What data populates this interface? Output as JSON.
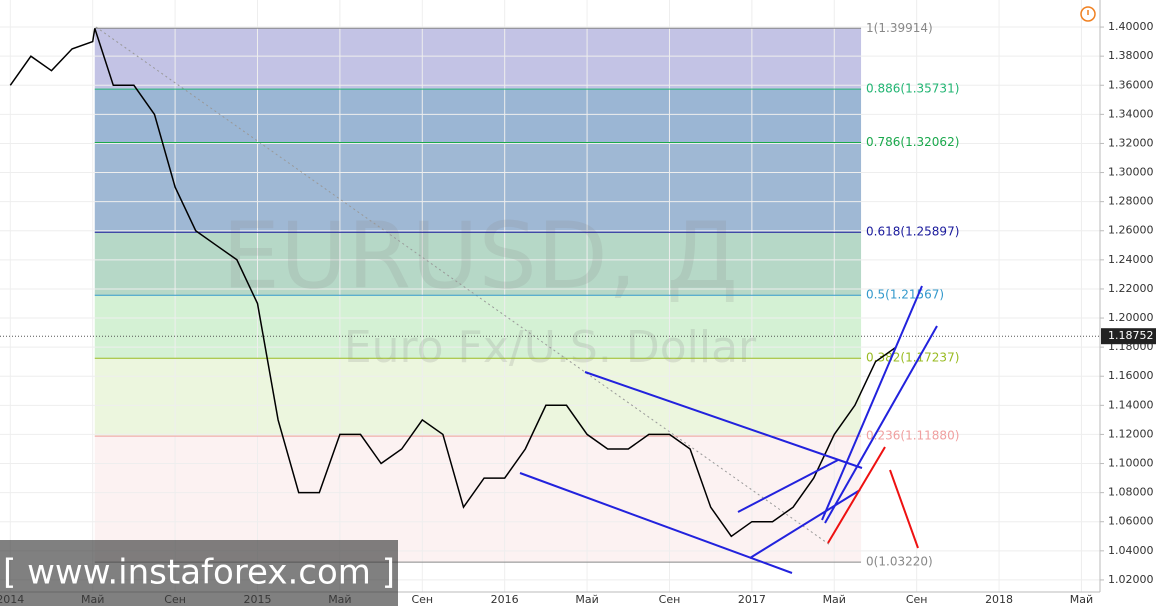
{
  "chart_data": {
    "type": "line",
    "title": "EURUSD, Д",
    "subtitle": "Euro Fx/U.S. Dollar",
    "watermark": "[ www.instaforex.com ]",
    "xlim": [
      -0.5,
      52.9
    ],
    "ylim": [
      1.0117,
      1.4186
    ],
    "xticks": [
      {
        "value": 0,
        "label": "2014"
      },
      {
        "value": 4,
        "label": "Май"
      },
      {
        "value": 8,
        "label": "Сен"
      },
      {
        "value": 12,
        "label": "2015"
      },
      {
        "value": 16,
        "label": "Май"
      },
      {
        "value": 20,
        "label": "Сен"
      },
      {
        "value": 24,
        "label": "2016"
      },
      {
        "value": 28,
        "label": "Май"
      },
      {
        "value": 32,
        "label": "Сен"
      },
      {
        "value": 36,
        "label": "2017"
      },
      {
        "value": 40,
        "label": "Май"
      },
      {
        "value": 44,
        "label": "Сен"
      },
      {
        "value": 48,
        "label": "2018"
      },
      {
        "value": 52,
        "label": "Май"
      }
    ],
    "yticks": [
      {
        "value": 1.02,
        "label": "1.02000"
      },
      {
        "value": 1.04,
        "label": "1.04000"
      },
      {
        "value": 1.06,
        "label": "1.06000"
      },
      {
        "value": 1.08,
        "label": "1.08000"
      },
      {
        "value": 1.1,
        "label": "1.10000"
      },
      {
        "value": 1.12,
        "label": "1.12000"
      },
      {
        "value": 1.14,
        "label": "1.14000"
      },
      {
        "value": 1.16,
        "label": "1.16000"
      },
      {
        "value": 1.18,
        "label": "1.18000"
      },
      {
        "value": 1.2,
        "label": "1.20000"
      },
      {
        "value": 1.22,
        "label": "1.22000"
      },
      {
        "value": 1.24,
        "label": "1.24000"
      },
      {
        "value": 1.26,
        "label": "1.26000"
      },
      {
        "value": 1.28,
        "label": "1.28000"
      },
      {
        "value": 1.3,
        "label": "1.30000"
      },
      {
        "value": 1.32,
        "label": "1.32000"
      },
      {
        "value": 1.34,
        "label": "1.34000"
      },
      {
        "value": 1.36,
        "label": "1.36000"
      },
      {
        "value": 1.38,
        "label": "1.38000"
      },
      {
        "value": 1.4,
        "label": "1.40000"
      }
    ],
    "series": [
      {
        "name": "EURUSD",
        "color": "#000000",
        "x": [
          0,
          1,
          2,
          3,
          4,
          4.1,
          5,
          6,
          7,
          8,
          9,
          10,
          11,
          12,
          13,
          14,
          15,
          16,
          17,
          18,
          19,
          20,
          21,
          22,
          23,
          24,
          25,
          26,
          27,
          28,
          29,
          30,
          31,
          32,
          33,
          34,
          35,
          36,
          37,
          38,
          39,
          40,
          41,
          42,
          43
        ],
        "values": [
          1.36,
          1.38,
          1.37,
          1.385,
          1.39,
          1.3991,
          1.36,
          1.36,
          1.34,
          1.29,
          1.26,
          1.25,
          1.24,
          1.21,
          1.13,
          1.08,
          1.08,
          1.12,
          1.12,
          1.1,
          1.11,
          1.13,
          1.12,
          1.07,
          1.09,
          1.09,
          1.11,
          1.14,
          1.14,
          1.12,
          1.11,
          1.11,
          1.12,
          1.12,
          1.11,
          1.07,
          1.05,
          1.06,
          1.06,
          1.07,
          1.09,
          1.12,
          1.14,
          1.17,
          1.18
        ]
      }
    ],
    "fib_start_x": 4.1,
    "fib_end_x": 41.3,
    "levels": [
      {
        "label": "1(1.39914)",
        "value": 1.39914,
        "color": "#888888",
        "band": "#b9b9e0"
      },
      {
        "label": "0.886(1.35731)",
        "value": 1.35731,
        "color": "#22b573",
        "band": "#8aa9cc"
      },
      {
        "label": "0.786(1.32062)",
        "value": 1.32062,
        "color": "#1aa84c",
        "band": "#8eaccc"
      },
      {
        "label": "0.618(1.25897)",
        "value": 1.25897,
        "color": "#1a1a9c",
        "band": "#a9d1bd"
      },
      {
        "label": "0.5(1.21567)",
        "value": 1.21567,
        "color": "#3399cc",
        "band": "#cdefcd"
      },
      {
        "label": "0.382(1.17237)",
        "value": 1.17237,
        "color": "#99bb22",
        "band": "#e9f5d8"
      },
      {
        "label": "0.236(1.11880)",
        "value": 1.1188,
        "color": "#f0a0a0",
        "band": "#fbf0f0"
      },
      {
        "label": "0(1.03220)",
        "value": 1.0322,
        "color": "#888888"
      }
    ],
    "last": {
      "value": 1.18752,
      "label": "1.18752"
    }
  }
}
